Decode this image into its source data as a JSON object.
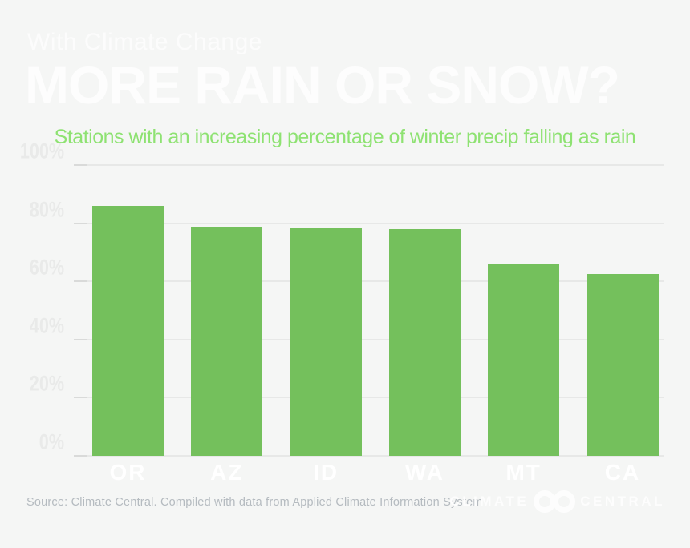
{
  "header": {
    "kicker": "With Climate Change",
    "title": "MORE RAIN OR SNOW?",
    "subtitle": "Stations with an increasing percentage of winter precip falling as rain"
  },
  "chart_data": {
    "type": "bar",
    "categories": [
      "OR",
      "AZ",
      "ID",
      "WA",
      "MT",
      "CA"
    ],
    "values": [
      86.0,
      78.8,
      78.2,
      78.1,
      65.9,
      62.6
    ],
    "title": "Stations with an increasing percentage of winter precip falling as rain",
    "xlabel": "",
    "ylabel": "",
    "ylim": [
      0,
      100
    ],
    "yticks": [
      0,
      20,
      40,
      60,
      80,
      100
    ],
    "ytick_labels": [
      "0%",
      "20%",
      "40%",
      "60%",
      "80%",
      "100%"
    ],
    "grid": true,
    "legend": "none",
    "bar_color": "#74c05c"
  },
  "footer": {
    "source": "Source: Climate Central. Compiled with data from Applied Climate Information System",
    "logo_word_left": "CLIMATE",
    "logo_word_right": "CENTRAL"
  },
  "colors": {
    "background": "#f5f6f5",
    "title_text": "#fdfdfd",
    "subtitle_green": "#8ee272",
    "bar_green": "#74c05c",
    "gridline": "#e7e8e7",
    "ytick_text": "#e9eae9",
    "xtick_text": "#ffffff",
    "source_text": "#b5bbc0"
  }
}
